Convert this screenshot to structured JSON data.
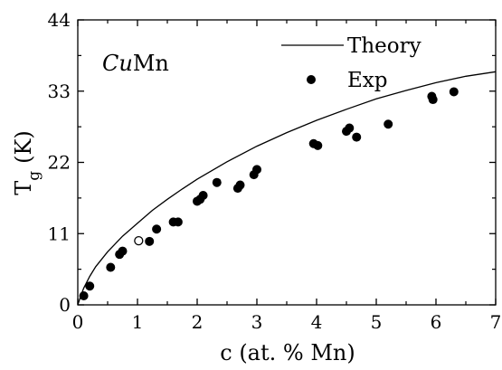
{
  "chart_data": {
    "type": "scatter",
    "title": "",
    "annotation": {
      "italic": "Cu",
      "normal": "Mn"
    },
    "xlabel": "c (at. % Mn)",
    "ylabel": {
      "main": "T",
      "sub": "g",
      "unit": "(K)"
    },
    "xlim": [
      0,
      7
    ],
    "ylim": [
      0,
      44
    ],
    "xticks": [
      "0",
      "1",
      "2",
      "3",
      "4",
      "5",
      "6",
      "7"
    ],
    "yticks": [
      "0",
      "11",
      "22",
      "33",
      "44"
    ],
    "grid": false,
    "legend_position": "top-right",
    "series": [
      {
        "name": "Theory",
        "kind": "line",
        "color": "#000000",
        "x": [
          0.0,
          0.05,
          0.1,
          0.2,
          0.3,
          0.5,
          0.75,
          1.0,
          1.25,
          1.5,
          1.75,
          2.0,
          2.5,
          3.0,
          3.5,
          4.0,
          4.5,
          5.0,
          5.5,
          6.0,
          6.5,
          7.0
        ],
        "y": [
          0.0,
          1.4,
          2.6,
          4.4,
          5.9,
          8.2,
          10.6,
          12.6,
          14.6,
          16.3,
          17.9,
          19.4,
          22.1,
          24.5,
          26.6,
          28.5,
          30.2,
          31.8,
          33.1,
          34.3,
          35.3,
          36.0
        ]
      },
      {
        "name": "Exp",
        "kind": "scatter",
        "color": "#000000",
        "x": [
          0.1,
          0.2,
          0.55,
          0.7,
          0.75,
          1.2,
          1.32,
          1.6,
          1.68,
          2.0,
          2.05,
          2.1,
          2.33,
          2.68,
          2.72,
          2.95,
          3.0,
          3.95,
          4.02,
          4.5,
          4.55,
          4.67,
          5.2,
          5.93,
          5.95,
          6.3
        ],
        "y": [
          1.4,
          2.9,
          5.8,
          7.8,
          8.3,
          9.8,
          11.7,
          12.8,
          12.8,
          16.0,
          16.3,
          16.9,
          18.9,
          18.0,
          18.5,
          20.1,
          20.9,
          24.9,
          24.6,
          26.8,
          27.3,
          25.9,
          27.9,
          32.2,
          31.7,
          32.9
        ]
      },
      {
        "name": "",
        "kind": "scatter-open",
        "color": "#000000",
        "x": [
          1.02
        ],
        "y": [
          9.9
        ]
      }
    ]
  }
}
